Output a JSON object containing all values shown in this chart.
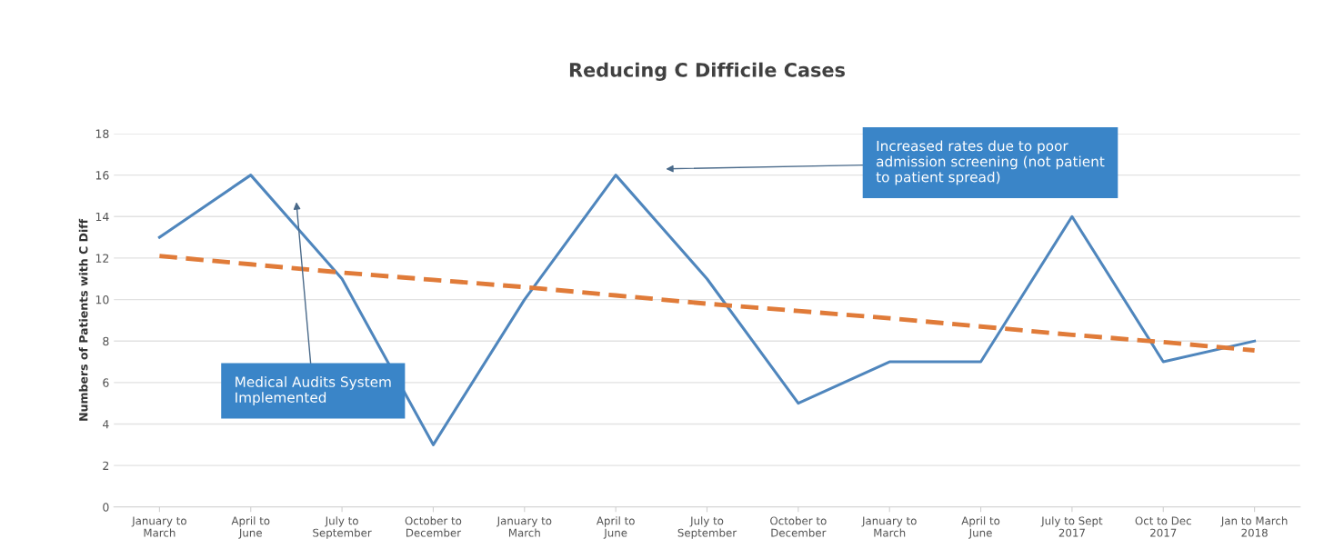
{
  "chart_data": {
    "type": "line",
    "title": "Reducing C Difficile Cases",
    "ylabel": "Numbers of Patients with C Diff",
    "categories": [
      "January to\nMarch",
      "April to\nJune",
      "July to\nSeptember",
      "October to\nDecember",
      "January to\nMarch",
      "April to\nJune",
      "July to\nSeptember",
      "October to\nDecember",
      "January to\nMarch",
      "April to\nJune",
      "July to Sept\n2017",
      "Oct to Dec\n2017",
      "Jan to March\n2018"
    ],
    "series": [
      {
        "color": "#4f86bd",
        "line_style": "solid",
        "values": [
          13,
          16,
          11,
          3,
          10,
          16,
          11,
          5,
          7,
          7,
          14,
          7,
          8
        ]
      },
      {
        "color": "#e07b39",
        "line_style": "dashed",
        "values": [
          12.1,
          11.7,
          11.3,
          10.95,
          10.6,
          10.2,
          9.8,
          9.45,
          9.1,
          8.7,
          8.3,
          7.95,
          7.55
        ]
      }
    ],
    "annotations": [
      "Medical Audits System\nImplemented",
      "Increased rates due to poor\nadmission screening (not patient\nto patient spread)"
    ],
    "ylim": [
      0,
      18
    ],
    "yticks": [
      0,
      2,
      4,
      6,
      8,
      10,
      12,
      14,
      16,
      18
    ],
    "grid": "y",
    "legend": false,
    "marker": "none"
  }
}
